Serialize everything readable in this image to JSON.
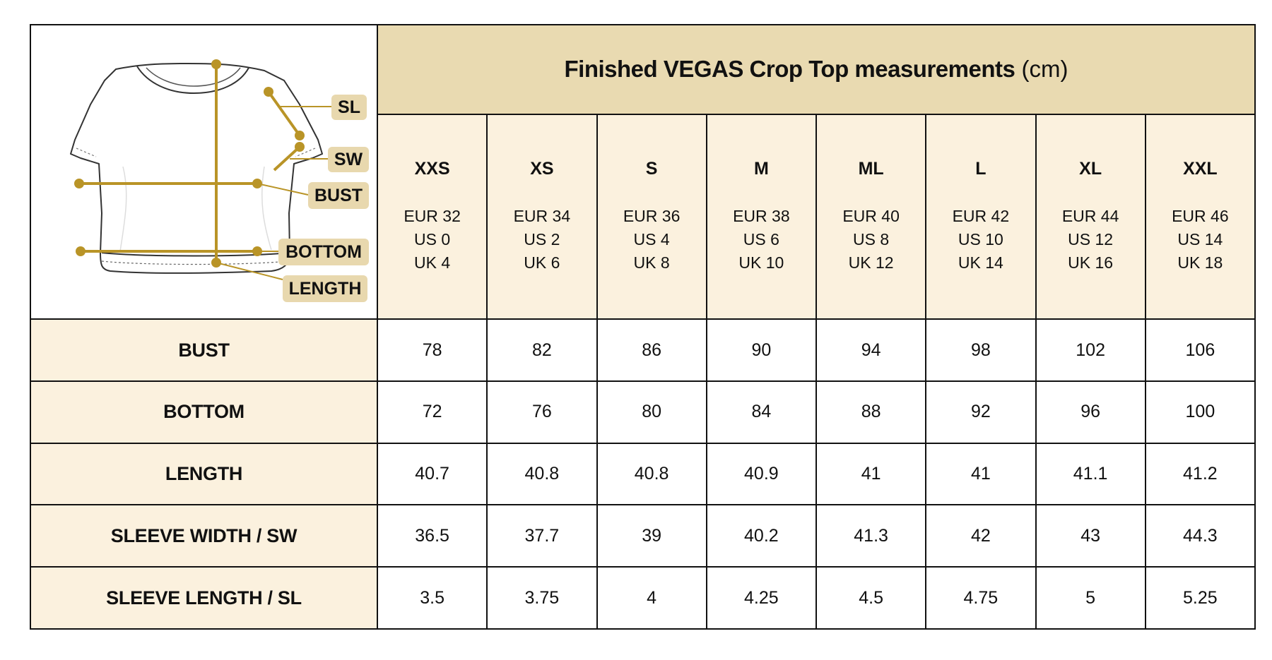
{
  "title": {
    "bold": "Finished  VEGAS Crop Top measurements",
    "unit": "(cm)"
  },
  "diagram_labels": [
    "SL",
    "SW",
    "BUST",
    "BOTTOM",
    "LENGTH"
  ],
  "sizes": [
    {
      "name": "XXS",
      "eur": "EUR 32",
      "us": "US 0",
      "uk": "UK 4"
    },
    {
      "name": "XS",
      "eur": "EUR 34",
      "us": "US 2",
      "uk": "UK 6"
    },
    {
      "name": "S",
      "eur": "EUR 36",
      "us": "US 4",
      "uk": "UK 8"
    },
    {
      "name": "M",
      "eur": "EUR 38",
      "us": "US 6",
      "uk": "UK 10"
    },
    {
      "name": "ML",
      "eur": "EUR 40",
      "us": "US 8",
      "uk": "UK 12"
    },
    {
      "name": "L",
      "eur": "EUR 42",
      "us": "US 10",
      "uk": "UK 14"
    },
    {
      "name": "XL",
      "eur": "EUR 44",
      "us": "US 12",
      "uk": "UK 16"
    },
    {
      "name": "XXL",
      "eur": "EUR 46",
      "us": "US 14",
      "uk": "UK 18"
    }
  ],
  "rows": [
    {
      "label": "BUST",
      "values": [
        "78",
        "82",
        "86",
        "90",
        "94",
        "98",
        "102",
        "106"
      ]
    },
    {
      "label": "BOTTOM",
      "values": [
        "72",
        "76",
        "80",
        "84",
        "88",
        "92",
        "96",
        "100"
      ]
    },
    {
      "label": "LENGTH",
      "values": [
        "40.7",
        "40.8",
        "40.8",
        "40.9",
        "41",
        "41",
        "41.1",
        "41.2"
      ]
    },
    {
      "label": "SLEEVE WIDTH / SW",
      "values": [
        "36.5",
        "37.7",
        "39",
        "40.2",
        "41.3",
        "42",
        "43",
        "44.3"
      ]
    },
    {
      "label": "SLEEVE LENGTH / SL",
      "values": [
        "3.5",
        "3.75",
        "4",
        "4.25",
        "4.5",
        "4.75",
        "5",
        "5.25"
      ]
    }
  ],
  "colors": {
    "header_bg": "#e9dab1",
    "label_bg": "#fbf1de",
    "measure_line": "#b99427",
    "tag_bg": "#e8d8ae",
    "border": "#111111"
  }
}
